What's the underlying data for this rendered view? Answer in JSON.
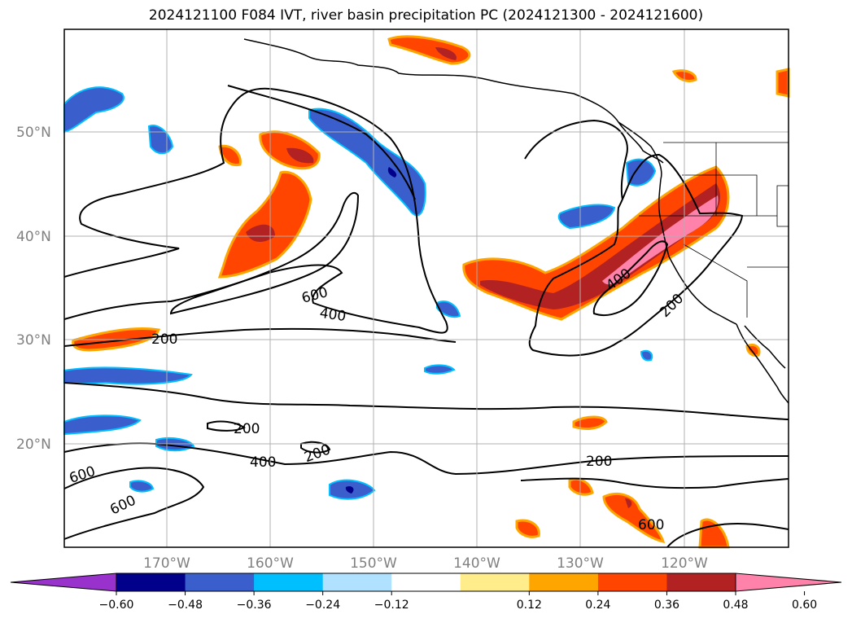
{
  "title": "2024121100 F084 IVT, river basin precipitation PC (2024121300 - 2024121600)",
  "map": {
    "lat_ticks": [
      "50°N",
      "40°N",
      "30°N",
      "20°N"
    ],
    "lon_ticks": [
      "170°W",
      "160°W",
      "150°W",
      "140°W",
      "130°W",
      "120°W"
    ],
    "contour_labels": [
      "600",
      "400",
      "200",
      "200",
      "200",
      "400",
      "600",
      "600",
      "200",
      "400",
      "200",
      "600"
    ],
    "gridlines": true
  },
  "colorbar": {
    "ticks": [
      "−0.60",
      "−0.48",
      "−0.36",
      "−0.24",
      "−0.12",
      "0.12",
      "0.24",
      "0.36",
      "0.48",
      "0.60"
    ],
    "colors": [
      "#9932cc",
      "#00008b",
      "#3a5fcd",
      "#00bfff",
      "#b0e2ff",
      "#ffffff",
      "#ffec8b",
      "#ffa500",
      "#ff4500",
      "#b22222",
      "#ff82ab"
    ]
  },
  "colors": {
    "neg_dark": "#00008b",
    "neg_mid": "#3a5fcd",
    "neg_light": "#00bfff",
    "neg_pale": "#b0e2ff",
    "pos_pale": "#ffec8b",
    "pos_orange": "#ffa500",
    "pos_red": "#ff4500",
    "pos_dark": "#b22222",
    "pos_pink": "#ff82ab"
  }
}
